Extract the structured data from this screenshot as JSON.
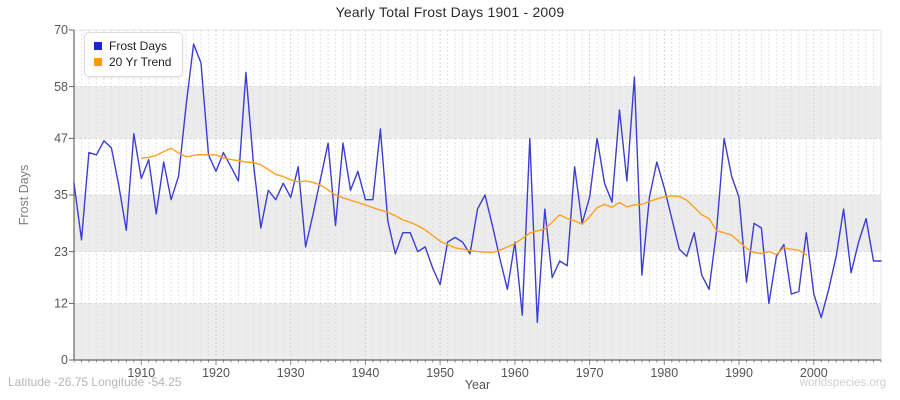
{
  "page": {
    "title": "Yearly Total Frost Days 1901 - 2009",
    "x_axis_label": "Year",
    "y_axis_label": "Frost Days",
    "footer_left": "Latitude -26.75 Longitude -54.25",
    "footer_right": "worldspecies.org"
  },
  "legend": {
    "position": "top-left",
    "items": [
      {
        "label": "Frost Days",
        "swatch_color": "#2222cc"
      },
      {
        "label": "20 Yr Trend",
        "swatch_color": "#ff9900"
      }
    ]
  },
  "chart_data": {
    "type": "line",
    "title": "Yearly Total Frost Days 1901 - 2009",
    "xlabel": "Year",
    "ylabel": "Frost Days",
    "xlim": [
      1901,
      2009
    ],
    "ylim": [
      0,
      70
    ],
    "x_ticks": [
      1910,
      1920,
      1930,
      1940,
      1950,
      1960,
      1970,
      1980,
      1990,
      2000
    ],
    "y_ticks": [
      0,
      12,
      23,
      35,
      47,
      58,
      70
    ],
    "grid": true,
    "legend_position": "top-left",
    "style": {
      "band_color": "#ececec",
      "minor_grid_color": "#e0e0e0",
      "decade_grid_color": "#cfcfcf",
      "h_grid_color": "#d8d8d8",
      "axis_color": "#666666",
      "tick_color": "#8a8a8a",
      "tick_label_color": "#555555",
      "plot_border_color": "#e4e4e4"
    },
    "series": [
      {
        "name": "Frost Days",
        "color": "#3d3dd2",
        "x_start": 1901,
        "x_step": 1,
        "values": [
          37.5,
          25.5,
          44,
          43.5,
          46.5,
          45,
          37,
          27.5,
          48,
          38.5,
          42.5,
          31,
          42,
          34,
          39,
          54,
          67,
          63,
          43.5,
          40,
          44,
          41,
          38,
          61,
          42,
          28,
          36,
          34,
          37.5,
          34.5,
          41,
          24,
          31,
          38.5,
          46,
          28.5,
          46,
          36,
          40,
          34,
          34,
          49,
          29.5,
          22.5,
          27,
          27,
          23,
          24,
          19.5,
          16,
          25,
          26,
          25,
          22.5,
          32,
          35,
          28.5,
          21.5,
          15,
          25,
          9.5,
          47,
          8,
          32,
          17.5,
          21,
          20,
          41,
          29,
          34.5,
          47,
          37.5,
          33.5,
          53,
          38,
          60,
          18,
          34.5,
          42,
          36.5,
          30,
          23.5,
          22,
          27,
          18,
          15,
          27.5,
          47,
          39,
          34.5,
          16.5,
          29,
          28,
          12,
          22,
          24.5,
          14,
          14.5,
          27,
          14,
          9,
          15,
          22,
          32,
          18.5,
          25,
          30,
          21,
          21
        ]
      },
      {
        "name": "20 Yr Trend",
        "color": "#ffa024",
        "x_start": 1910,
        "x_step": 1,
        "values": [
          42.8,
          43,
          43.4,
          44.2,
          44.9,
          43.9,
          43.1,
          43.4,
          43.6,
          43.5,
          43.5,
          42.9,
          42.5,
          42.3,
          42,
          41.9,
          41.4,
          40.4,
          39.4,
          38.9,
          38.2,
          37.8,
          38,
          37.7,
          37.1,
          36.1,
          35,
          34.4,
          33.9,
          33.4,
          32.9,
          32.3,
          31.8,
          31.3,
          30.6,
          29.7,
          29.2,
          28.5,
          27.6,
          26.4,
          25.2,
          24.5,
          23.8,
          23.5,
          23.2,
          23,
          22.9,
          22.8,
          23.3,
          24,
          24.7,
          25.8,
          26.9,
          27.4,
          27.8,
          29.2,
          30.8,
          30,
          29.5,
          28.8,
          30.4,
          32.3,
          33,
          32.4,
          33.4,
          32.5,
          32.9,
          33,
          33.6,
          34.2,
          34.6,
          34.8,
          34.7,
          33.9,
          32.4,
          30.8,
          30,
          27.4,
          27,
          26.5,
          25.1,
          23.7,
          22.8,
          22.6,
          23,
          22.4,
          23.8,
          23.5,
          23.3,
          22.3
        ]
      }
    ]
  }
}
